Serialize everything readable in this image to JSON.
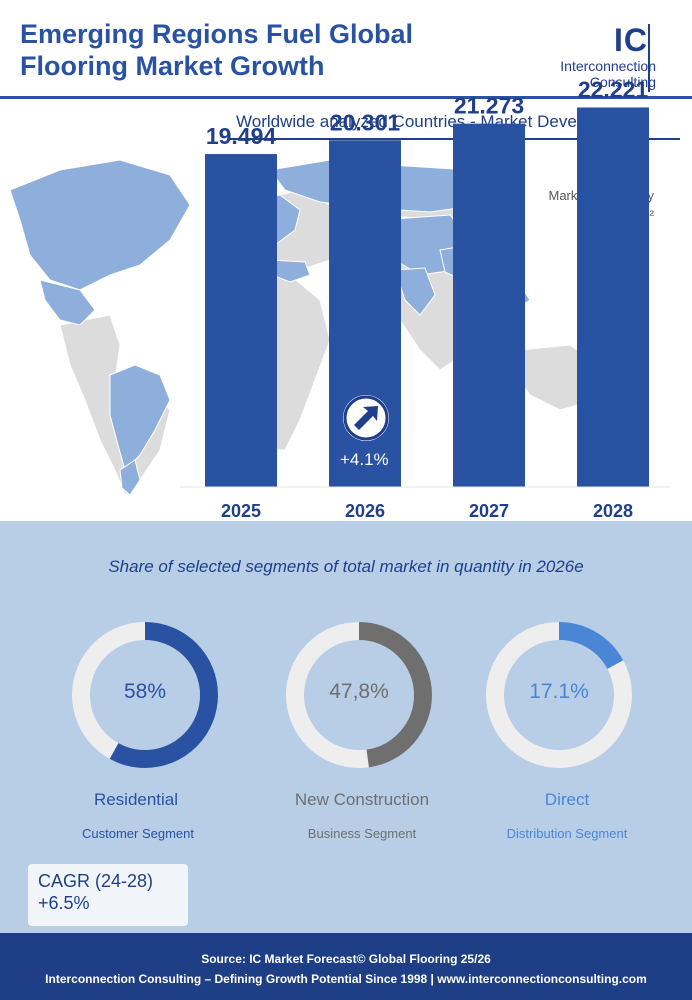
{
  "header": {
    "title": "Emerging Regions Fuel Global Flooring Market Growth",
    "logo_initials": "IC",
    "logo_line1": "Interconnection",
    "logo_line2": "Consulting"
  },
  "subtitle": "Worldwide analyzed Countries - Market Development",
  "unit_line1": "Market in Quantity",
  "unit_line2": "in Mln. M²",
  "growth_label": "+4.1%",
  "chart_data": {
    "type": "bar",
    "title": "Worldwide analyzed Countries - Market Development",
    "ylabel": "Market in Quantity in Mln. M²",
    "categories": [
      "2025",
      "2026",
      "2027",
      "2028"
    ],
    "values": [
      19.494,
      20.301,
      21.273,
      22.221
    ],
    "value_labels": [
      "19.494",
      "20.301",
      "21.273",
      "22.221"
    ],
    "ylim": [
      0,
      25
    ],
    "bar_color": "#2952a3",
    "annotation": "+4.1%"
  },
  "segments": {
    "title": "Share of selected segments of total market in quantity in 2026e",
    "items": [
      {
        "value": 58,
        "label": "58%",
        "name": "Residential",
        "category": "Customer Segment",
        "color": "#2952a3",
        "text_color": "#2952a3"
      },
      {
        "value": 47.8,
        "label": "47,8%",
        "name": "New Construction",
        "category": "Business Segment",
        "color": "#6f6f6f",
        "text_color": "#6f6f6f"
      },
      {
        "value": 17.1,
        "label": "17.1%",
        "name": "Direct",
        "category": "Distribution Segment",
        "color": "#4b86d6",
        "text_color": "#4b86d6"
      }
    ]
  },
  "cagr": {
    "label": "CAGR (24-28)",
    "value": "+6.5%"
  },
  "footer": {
    "source": "Source: IC Market Forecast© Global Flooring 25/26",
    "tagline": "Interconnection Consulting – Defining Growth Potential Since 1998 | www.interconnectionconsulting.com"
  }
}
